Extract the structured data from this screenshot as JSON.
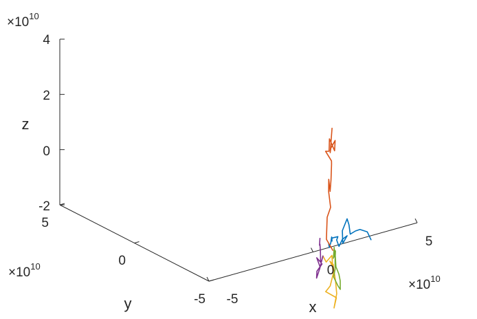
{
  "chart_data": {
    "type": "line",
    "view": "3d",
    "xlabel": "x",
    "ylabel": "y",
    "zlabel": "z",
    "x_ticks": [
      "-5",
      "0",
      "5"
    ],
    "y_ticks": [
      "-5",
      "0",
      "5"
    ],
    "z_ticks": [
      "-2",
      "0",
      "2",
      "4"
    ],
    "x_exponent": "10",
    "y_exponent": "10",
    "z_exponent": "10",
    "exponent_base": "×10",
    "xlim": [
      -5,
      5
    ],
    "ylim": [
      -5,
      5
    ],
    "zlim": [
      -2,
      4
    ],
    "grid": false,
    "series": [
      {
        "color": "#0072BD",
        "points": [
          [
            4.6,
            0.6,
            -0.3
          ],
          [
            4.3,
            0.7,
            0.0
          ],
          [
            3.8,
            1.0,
            0.1
          ],
          [
            3.5,
            1.2,
            0.05
          ],
          [
            3.3,
            1.6,
            -0.1
          ],
          [
            3.0,
            1.4,
            0.3
          ],
          [
            3.3,
            2.0,
            0.4
          ],
          [
            2.9,
            2.1,
            0.0
          ],
          [
            2.7,
            1.8,
            -0.4
          ],
          [
            2.9,
            1.5,
            -0.1
          ],
          [
            2.5,
            1.6,
            -0.2
          ],
          [
            2.8,
            2.4,
            -0.6
          ],
          [
            2.4,
            2.2,
            -0.3
          ],
          [
            2.2,
            1.8,
            -0.1
          ],
          [
            2.0,
            2.3,
            -0.2
          ],
          [
            1.6,
            1.8,
            -0.2
          ],
          [
            1.4,
            1.6,
            0.0
          ],
          [
            1.0,
            1.2,
            -0.1
          ],
          [
            0.6,
            0.9,
            -0.2
          ],
          [
            0.3,
            0.6,
            0.0
          ]
        ]
      },
      {
        "color": "#D95319",
        "points": [
          [
            -1.0,
            -1.5,
            0.2
          ],
          [
            -1.4,
            -1.2,
            0.6
          ],
          [
            -1.0,
            -0.8,
            1.3
          ],
          [
            -1.3,
            -1.6,
            1.8
          ],
          [
            -1.5,
            -1.6,
            2.4
          ],
          [
            -1.0,
            -1.0,
            2.7
          ],
          [
            -0.7,
            -0.8,
            2.2
          ],
          [
            -0.2,
            -0.3,
            2.5
          ],
          [
            0.1,
            0.0,
            3.0
          ],
          [
            0.5,
            0.5,
            3.0
          ],
          [
            0.3,
            1.0,
            3.3
          ],
          [
            0.9,
            1.3,
            3.2
          ],
          [
            1.1,
            1.5,
            3.6
          ],
          [
            1.3,
            1.1,
            3.2
          ],
          [
            1.6,
            1.4,
            3.5
          ],
          [
            1.4,
            1.7,
            3.2
          ],
          [
            1.5,
            1.9,
            3.0
          ],
          [
            1.2,
            1.3,
            4.0
          ]
        ]
      },
      {
        "color": "#EDB120",
        "points": [
          [
            -2.0,
            -1.5,
            0.1
          ],
          [
            -1.5,
            -1.3,
            -0.2
          ],
          [
            -1.0,
            -1.4,
            0.0
          ],
          [
            -1.2,
            -1.8,
            -0.6
          ],
          [
            -1.5,
            -1.8,
            -1.0
          ],
          [
            -1.8,
            -1.6,
            -1.2
          ],
          [
            -1.2,
            -2.2,
            -1.4
          ],
          [
            -1.6,
            -2.4,
            -1.7
          ],
          [
            -1.0,
            -2.0,
            -1.3
          ],
          [
            -0.8,
            -1.6,
            -0.9
          ],
          [
            -0.5,
            -1.0,
            -0.6
          ],
          [
            -0.8,
            -0.9,
            -0.3
          ],
          [
            -0.3,
            -0.7,
            -0.5
          ],
          [
            -0.6,
            -1.2,
            -0.8
          ],
          [
            -0.2,
            -0.5,
            -0.7
          ],
          [
            0.0,
            -0.2,
            -0.3
          ]
        ]
      },
      {
        "color": "#7E2F8E",
        "points": [
          [
            -2.0,
            -1.5,
            0.1
          ],
          [
            -2.3,
            -1.5,
            -0.3
          ],
          [
            -2.4,
            -1.2,
            -0.7
          ],
          [
            -2.2,
            -1.0,
            -0.5
          ],
          [
            -2.0,
            -1.4,
            -0.2
          ],
          [
            -1.8,
            -0.9,
            -0.4
          ],
          [
            -1.9,
            -0.6,
            -0.1
          ],
          [
            -1.5,
            -0.6,
            -0.3
          ],
          [
            -1.2,
            -0.2,
            0.0
          ],
          [
            -1.0,
            0.1,
            0.2
          ],
          [
            -0.8,
            0.4,
            0.1
          ],
          [
            -0.6,
            0.6,
            0.3
          ]
        ]
      },
      {
        "color": "#77AC30",
        "points": [
          [
            -0.2,
            -0.6,
            -0.3
          ],
          [
            0.2,
            -0.2,
            0.0
          ],
          [
            0.4,
            0.0,
            -0.4
          ],
          [
            0.6,
            0.2,
            -0.2
          ],
          [
            0.3,
            -0.3,
            -0.7
          ],
          [
            0.6,
            -0.3,
            -1.0
          ],
          [
            0.9,
            -0.1,
            -1.3
          ],
          [
            0.5,
            -0.6,
            -1.5
          ],
          [
            0.1,
            -0.8,
            -1.3
          ],
          [
            -0.1,
            -0.5,
            -1.0
          ],
          [
            0.3,
            -0.2,
            -0.8
          ],
          [
            0.7,
            0.3,
            -0.6
          ],
          [
            0.9,
            0.5,
            -0.3
          ]
        ]
      }
    ]
  }
}
